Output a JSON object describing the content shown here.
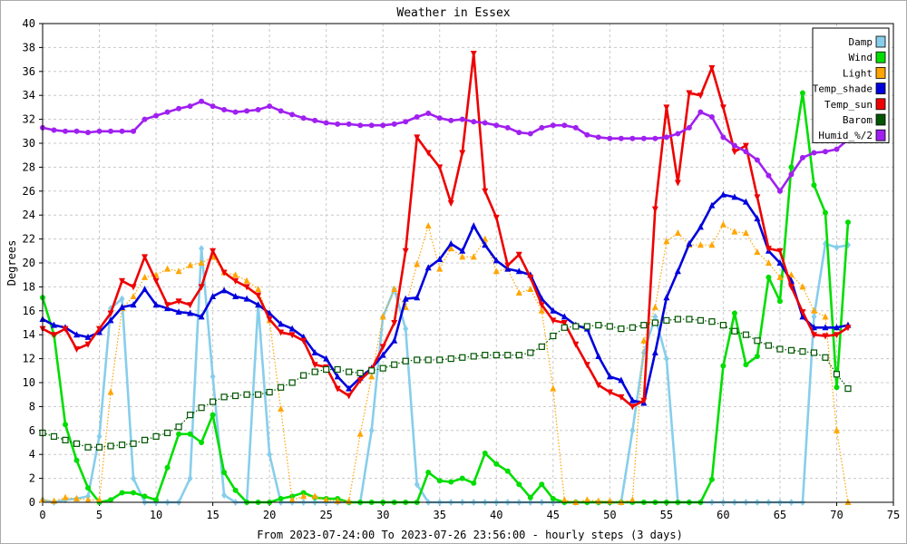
{
  "chart_data": {
    "type": "line",
    "title": "Weather in Essex",
    "xlabel": "From 2023-07-24:00 To 2023-07-26 23:56:00 - hourly steps (3 days)",
    "ylabel": "Degrees",
    "xlim": [
      0,
      75
    ],
    "ylim": [
      0,
      40
    ],
    "x_ticks": [
      0,
      5,
      10,
      15,
      20,
      25,
      30,
      35,
      40,
      45,
      50,
      55,
      60,
      65,
      70,
      75
    ],
    "y_ticks": [
      0,
      2,
      4,
      6,
      8,
      10,
      12,
      14,
      16,
      18,
      20,
      22,
      24,
      26,
      28,
      30,
      32,
      34,
      36,
      38,
      40
    ],
    "grid": true,
    "legend": "top-right",
    "series": [
      {
        "name": "Damp",
        "color": "#87ceeb",
        "marker": "diamond",
        "style": "solid",
        "values": [
          0.2,
          0,
          0.2,
          0.3,
          0.5,
          5.5,
          16.2,
          17,
          2,
          0,
          0,
          0,
          0,
          2,
          21.2,
          10.5,
          0.6,
          0,
          0,
          16.5,
          4,
          0,
          0,
          0,
          0,
          0,
          0,
          0,
          0,
          6,
          15.5,
          17.8,
          14.5,
          1.5,
          0,
          0,
          0,
          0,
          0,
          0,
          0,
          0,
          0,
          0,
          0,
          0,
          0,
          0,
          0,
          0,
          0,
          0,
          6,
          12.5,
          15.5,
          12,
          0,
          0,
          0,
          0,
          0,
          0,
          0,
          0,
          0,
          0,
          0,
          0,
          15.5,
          21.6,
          21.3,
          21.5
        ]
      },
      {
        "name": "Wind",
        "color": "#00dd00",
        "marker": "circle",
        "style": "solid",
        "values": [
          17.1,
          14,
          6.5,
          3.5,
          1.2,
          0,
          0.2,
          0.8,
          0.8,
          0.5,
          0.2,
          2.9,
          5.7,
          5.7,
          5,
          7.3,
          2.5,
          1,
          0,
          0,
          0,
          0.3,
          0.5,
          0.8,
          0.4,
          0.3,
          0.3,
          0,
          0,
          0,
          0,
          0,
          0,
          0,
          2.5,
          1.8,
          1.7,
          2,
          1.6,
          4.1,
          3.2,
          2.6,
          1.5,
          0.4,
          1.5,
          0.3,
          0,
          0,
          0,
          0,
          0,
          0,
          0,
          0,
          0,
          0,
          0,
          0,
          0,
          1.9,
          11.4,
          15.8,
          11.5,
          12.2,
          18.8,
          16.8,
          28,
          34.2,
          26.5,
          24.2,
          9.6,
          23.4
        ]
      },
      {
        "name": "Light",
        "color": "#ffa500",
        "marker": "triangle-up",
        "style": "dotted",
        "values": [
          0.2,
          0.1,
          0.4,
          0.3,
          0.2,
          0.2,
          9.2,
          16.2,
          17.2,
          18.8,
          19,
          19.5,
          19.3,
          19.8,
          20,
          20.5,
          19.2,
          19,
          18.5,
          17.8,
          15.2,
          7.8,
          0.2,
          0.5,
          0.5,
          0.2,
          0.1,
          0.1,
          5.7,
          10.5,
          15.5,
          17.8,
          16.3,
          19.9,
          23.1,
          19.5,
          21.2,
          20.5,
          20.5,
          22,
          19.3,
          19.5,
          17.5,
          17.8,
          16,
          9.5,
          0.2,
          0,
          0.2,
          0.1,
          0.1,
          0,
          0.2,
          13.5,
          16.3,
          21.8,
          22.5,
          21.5,
          21.5,
          21.5,
          23.2,
          22.6,
          22.5,
          20.9,
          20,
          18.8,
          19,
          18,
          16,
          15.5,
          6,
          0
        ]
      },
      {
        "name": "Temp_shade",
        "color": "#0000dd",
        "marker": "triangle-up",
        "style": "solid",
        "values": [
          15.3,
          14.8,
          14.6,
          14,
          13.8,
          14.2,
          15.2,
          16.3,
          16.5,
          17.8,
          16.5,
          16.2,
          15.9,
          15.8,
          15.5,
          17.2,
          17.7,
          17.2,
          17,
          16.5,
          15.8,
          14.9,
          14.5,
          13.8,
          12.5,
          12,
          10.5,
          9.5,
          10.4,
          11.2,
          12.3,
          13.5,
          17,
          17.1,
          19.6,
          20.3,
          21.6,
          21,
          23.1,
          21.5,
          20.2,
          19.5,
          19.3,
          19,
          17,
          16,
          15.5,
          14.8,
          14.5,
          12.2,
          10.5,
          10.2,
          8.5,
          8.3,
          12.5,
          17.1,
          19.3,
          21.6,
          23,
          24.8,
          25.7,
          25.5,
          25.1,
          23.7,
          21,
          20,
          18.5,
          15.5,
          14.6,
          14.6,
          14.6,
          14.8
        ]
      },
      {
        "name": "Temp_sun",
        "color": "#ee0000",
        "marker": "triangle-down",
        "style": "solid",
        "values": [
          14.5,
          14,
          14.5,
          12.8,
          13.2,
          14.5,
          15.8,
          18.5,
          18,
          20.5,
          18.5,
          16.5,
          16.8,
          16.5,
          18,
          21,
          19.2,
          18.5,
          18,
          17.3,
          15.3,
          14.2,
          14,
          13.5,
          11.5,
          11.3,
          9.5,
          8.9,
          10.2,
          11.1,
          13,
          15,
          21,
          30.5,
          29.2,
          28,
          25,
          29.2,
          37.5,
          26,
          23.8,
          19.8,
          20.7,
          18.8,
          16.5,
          15.2,
          15,
          13.2,
          11.5,
          9.8,
          9.2,
          8.8,
          8,
          8.5,
          24.5,
          33,
          26.7,
          34.2,
          34,
          36.3,
          33,
          29.3,
          29.8,
          25.5,
          21.2,
          21,
          18,
          15.9,
          14,
          13.9,
          14,
          14.6
        ]
      },
      {
        "name": "Barom",
        "color": "#005500",
        "marker": "square-open",
        "style": "dotted",
        "values": [
          5.8,
          5.5,
          5.2,
          4.9,
          4.6,
          4.6,
          4.7,
          4.8,
          4.9,
          5.2,
          5.5,
          5.8,
          6.3,
          7.3,
          7.9,
          8.4,
          8.8,
          8.9,
          9,
          9,
          9.2,
          9.6,
          10,
          10.6,
          10.9,
          11.1,
          11.1,
          10.9,
          10.8,
          11,
          11.2,
          11.5,
          11.8,
          11.9,
          11.9,
          11.9,
          12,
          12.1,
          12.2,
          12.3,
          12.3,
          12.3,
          12.3,
          12.5,
          13,
          13.9,
          14.6,
          14.7,
          14.7,
          14.8,
          14.7,
          14.5,
          14.6,
          14.8,
          15,
          15.2,
          15.3,
          15.3,
          15.2,
          15.1,
          14.8,
          14.3,
          14,
          13.5,
          13.1,
          12.8,
          12.7,
          12.6,
          12.5,
          12.1,
          10.7,
          9.5
        ]
      },
      {
        "name": "Humid_%/2",
        "color": "#a020f0",
        "marker": "circle",
        "style": "solid",
        "values": [
          31.3,
          31.1,
          31,
          31,
          30.9,
          31,
          31,
          31,
          31,
          32,
          32.3,
          32.6,
          32.9,
          33.1,
          33.5,
          33.1,
          32.8,
          32.6,
          32.7,
          32.8,
          33.1,
          32.7,
          32.4,
          32.1,
          31.9,
          31.7,
          31.6,
          31.6,
          31.5,
          31.5,
          31.5,
          31.6,
          31.8,
          32.2,
          32.5,
          32.1,
          31.9,
          32,
          31.8,
          31.7,
          31.5,
          31.3,
          30.9,
          30.8,
          31.3,
          31.5,
          31.5,
          31.3,
          30.7,
          30.5,
          30.4,
          30.4,
          30.4,
          30.4,
          30.4,
          30.5,
          30.8,
          31.3,
          32.6,
          32.2,
          30.5,
          29.8,
          29.3,
          28.6,
          27.3,
          26,
          27.4,
          28.8,
          29.2,
          29.3,
          29.5,
          30.3
        ]
      }
    ]
  }
}
